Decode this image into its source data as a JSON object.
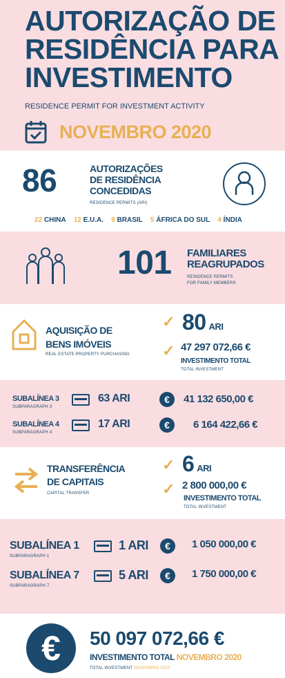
{
  "header": {
    "title_line1": "AUTORIZAÇÃO DE",
    "title_line2": "RESIDÊNCIA PARA",
    "title_line3": "INVESTIMENTO",
    "subtitle": "RESIDENCE PERMIT FOR INVESTMENT ACTIVITY",
    "date": "NOVEMBRO 2020",
    "calendar_icon": "calendar-check-icon"
  },
  "permits": {
    "number": "86",
    "title_line1": "AUTORIZAÇÕES",
    "title_line2": "DE RESIDÊNCIA",
    "title_line3": "CONCEDIDAS",
    "sub": "RESIDENCE PERMITS (ARI)",
    "countries": [
      {
        "count": "22",
        "name": "CHINA"
      },
      {
        "count": "12",
        "name": "E.U.A."
      },
      {
        "count": "9",
        "name": "BRASIL"
      },
      {
        "count": "5",
        "name": "ÁFRICA DO SUL"
      },
      {
        "count": "4",
        "name": "ÍNDIA"
      }
    ]
  },
  "family": {
    "number": "101",
    "title_line1": "FAMILIARES",
    "title_line2": "REAGRUPADOS",
    "sub_line1": "RESIDENCE PERMITS",
    "sub_line2": "FOR FAMILY MEMBERS"
  },
  "realestate": {
    "title_line1": "AQUISIÇÃO DE",
    "title_line2": "BENS IMÓVEIS",
    "sub": "REAL ESTATE PROPERTY PURCHASING",
    "count": "80",
    "count_unit": "ARI",
    "amount": "47 297 072,66 €",
    "amount_label": "INVESTIMENTO TOTAL",
    "amount_sub": "TOTAL INVESTMENT"
  },
  "realestate_sub": [
    {
      "label": "SUBALÍNEA 3",
      "sub": "SUBPARAGRAPH 3",
      "ari": "63 ARI",
      "amount": "41 132 650,00 €"
    },
    {
      "label": "SUBALÍNEA 4",
      "sub": "SUBPARAGRAPH 4",
      "ari": "17 ARI",
      "amount": "6 164 422,66 €"
    }
  ],
  "capital": {
    "title_line1": "TRANSFERÊNCIA",
    "title_line2": "DE CAPITAIS",
    "sub": "CAPITAL TRANSFER",
    "count": "6",
    "count_unit": "ARI",
    "amount": "2 800 000,00 €",
    "amount_label": "INVESTIMENTO TOTAL",
    "amount_sub": "TOTAL INVESTMENT"
  },
  "capital_sub": [
    {
      "label": "SUBALÍNEA 1",
      "sub": "SUBPARAGRAPH 1",
      "ari": "1 ARI",
      "amount": "1 050 000,00 €"
    },
    {
      "label": "SUBALÍNEA 7",
      "sub": "SUBPARAGRAPH 7",
      "ari": "5 ARI",
      "amount": "1 750 000,00 €"
    }
  ],
  "total": {
    "amount": "50 097 072,66 €",
    "label": "INVESTIMENTO TOTAL",
    "label_date": "NOVEMBRO 2020",
    "sub": "TOTAL INVESTMENT",
    "sub_date": "NOVEMBRO 2020",
    "euro_symbol": "€"
  },
  "colors": {
    "navy": "#1b4a6e",
    "gold": "#e8b054",
    "pink": "#f9dde1"
  }
}
